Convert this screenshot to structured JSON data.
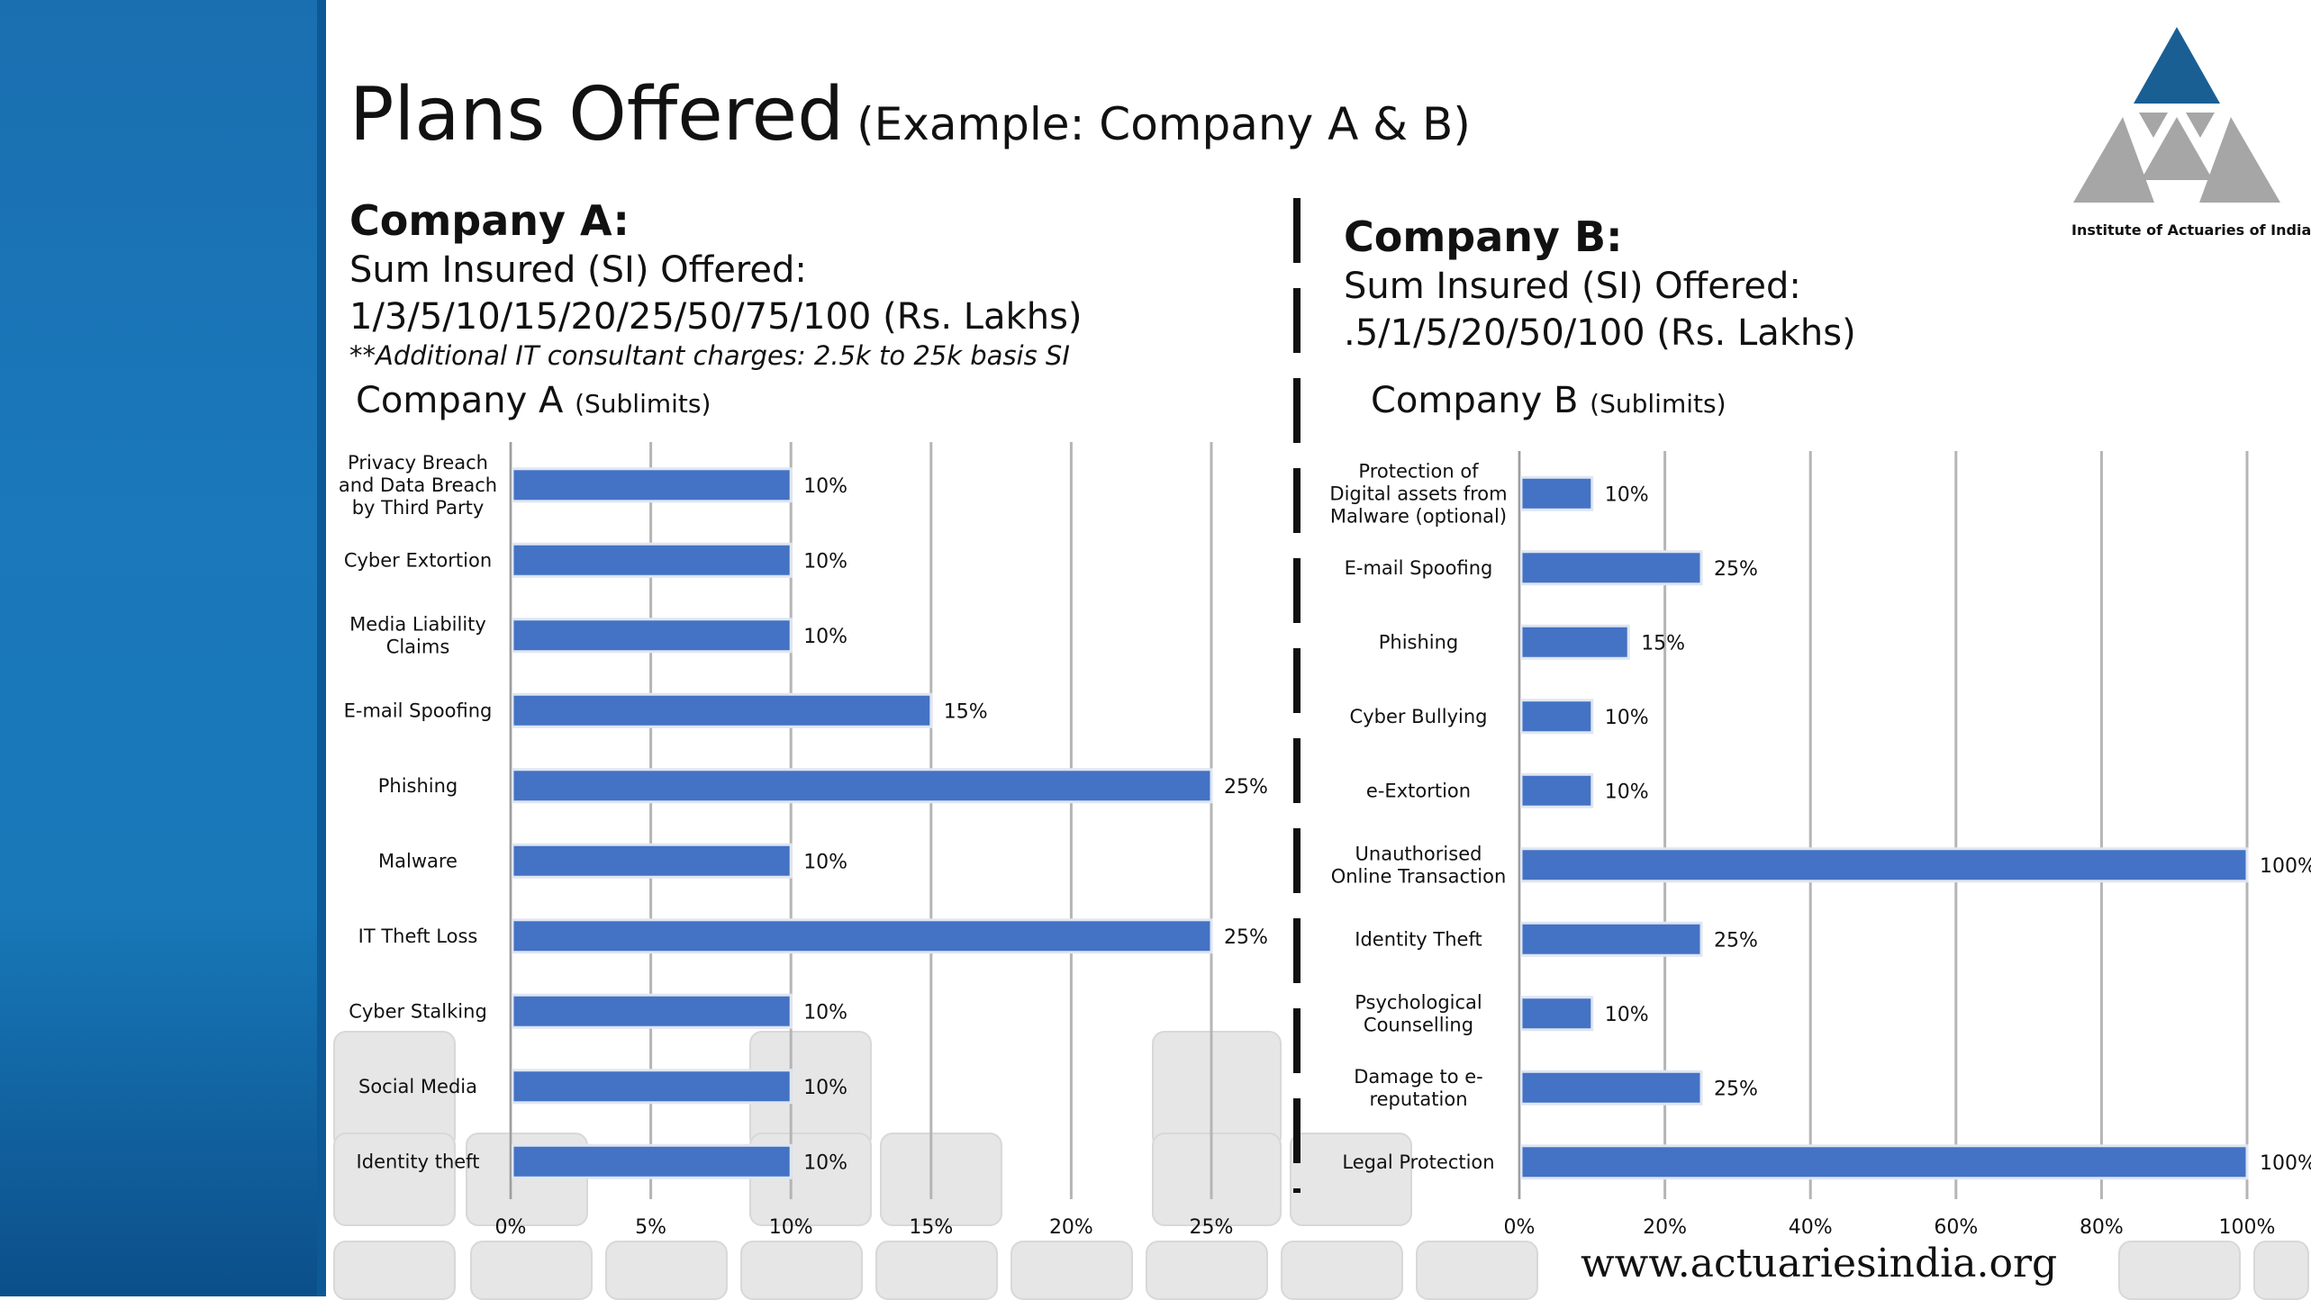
{
  "title": {
    "main": "Plans Offered",
    "sub": "(Example: Company A & B)"
  },
  "company_a": {
    "heading": "Company A:",
    "si_label": "Sum Insured (SI) Offered:",
    "si_values": "1/3/5/10/15/20/25/50/75/100 (Rs. Lakhs)",
    "note": "**Additional IT consultant charges: 2.5k to 25k basis SI",
    "chart_title": "Company A",
    "chart_subtitle": "(Sublimits)"
  },
  "company_b": {
    "heading": "Company B:",
    "si_label": "Sum Insured (SI) Offered:",
    "si_values": ".5/1/5/20/50/100 (Rs. Lakhs)",
    "chart_title": "Company B",
    "chart_subtitle": "(Sublimits)"
  },
  "logo": {
    "caption": "Institute of Actuaries of India"
  },
  "footer": {
    "website": "www.actuariesindia.org"
  },
  "colors": {
    "bar": "#4472c4",
    "sidebar": "#1a78bb",
    "logo_blue": "#1a5f94",
    "logo_grey": "#a6a6a6"
  },
  "chart_data": [
    {
      "type": "bar",
      "orientation": "horizontal",
      "title": "Company A (Sublimits)",
      "categories": [
        "Privacy Breach\nand Data Breach\nby Third Party",
        "Cyber Extortion",
        "Media Liability\nClaims",
        "E-mail Spoofing",
        "Phishing",
        "Malware",
        "IT Theft Loss",
        "Cyber Stalking",
        "Social Media",
        "Identity theft"
      ],
      "values": [
        10,
        10,
        10,
        15,
        25,
        10,
        25,
        10,
        10,
        10
      ],
      "data_labels": [
        "10%",
        "10%",
        "10%",
        "15%",
        "25%",
        "10%",
        "25%",
        "10%",
        "10%",
        "10%"
      ],
      "xlim": [
        0,
        25
      ],
      "x_ticks": [
        "0%",
        "5%",
        "10%",
        "15%",
        "20%",
        "25%"
      ],
      "grid": true
    },
    {
      "type": "bar",
      "orientation": "horizontal",
      "title": "Company B (Sublimits)",
      "categories": [
        "Protection of\nDigital assets from\nMalware (optional)",
        "E-mail Spoofing",
        "Phishing",
        "Cyber Bullying",
        "e-Extortion",
        "Unauthorised\nOnline Transaction",
        "Identity Theft",
        "Psychological\nCounselling",
        "Damage to e-\nreputation",
        "Legal Protection"
      ],
      "values": [
        10,
        25,
        15,
        10,
        10,
        100,
        25,
        10,
        25,
        100
      ],
      "data_labels": [
        "10%",
        "25%",
        "15%",
        "10%",
        "10%",
        "100%",
        "25%",
        "10%",
        "25%",
        "100%"
      ],
      "xlim": [
        0,
        100
      ],
      "x_ticks": [
        "0%",
        "20%",
        "40%",
        "60%",
        "80%",
        "100%"
      ],
      "grid": true
    }
  ]
}
